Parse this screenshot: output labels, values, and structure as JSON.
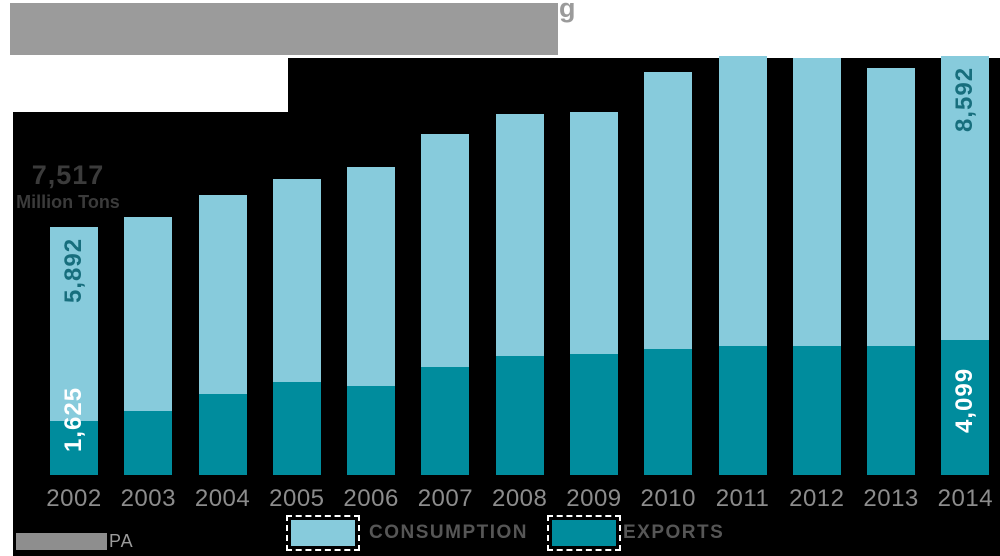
{
  "header": {
    "title_redacted": true,
    "visible_text": "g"
  },
  "annotation": {
    "first_bar_total_value": "7,517",
    "first_bar_total_unit": "Million Tons"
  },
  "source": {
    "redacted": true,
    "visible_text": "PA"
  },
  "colors": {
    "consumption": "#87cbdc",
    "exports": "#008c9d",
    "plot_background": "#000000",
    "value_label_dark": "#176e7d",
    "value_label_light": "#ffffff",
    "axis_text": "#8c8c8c",
    "legend_text": "#565656",
    "redaction_gray": "#9b9b9b"
  },
  "chart_data": {
    "type": "bar",
    "stacked": true,
    "unit": "million tons",
    "title_visible": false,
    "grid": false,
    "legend_position": "bottom",
    "background": "#000000",
    "categories": [
      "2002",
      "2003",
      "2004",
      "2005",
      "2006",
      "2007",
      "2008",
      "2009",
      "2010",
      "2011",
      "2012",
      "2013",
      "2014"
    ],
    "series": [
      {
        "name": "CONSUMPTION",
        "color": "#87cbdc",
        "values": [
          5892,
          5880,
          6030,
          6150,
          6640,
          7070,
          7330,
          7330,
          8390,
          8790,
          8730,
          8430,
          8592
        ]
      },
      {
        "name": "EXPORTS",
        "color": "#008c9d",
        "values": [
          1625,
          1940,
          2460,
          2820,
          2700,
          3270,
          3610,
          3670,
          3820,
          3910,
          3900,
          3900,
          4099
        ]
      }
    ],
    "value_labels": [
      {
        "category": "2002",
        "series": "CONSUMPTION",
        "text": "5,892"
      },
      {
        "category": "2002",
        "series": "EXPORTS",
        "text": "1,625"
      },
      {
        "category": "2014",
        "series": "CONSUMPTION",
        "text": "8,592"
      },
      {
        "category": "2014",
        "series": "EXPORTS",
        "text": "4,099"
      }
    ],
    "axis_note": "7,517 Million Tons labels the 2002 bar total",
    "ylim": [
      0,
      12691
    ]
  }
}
